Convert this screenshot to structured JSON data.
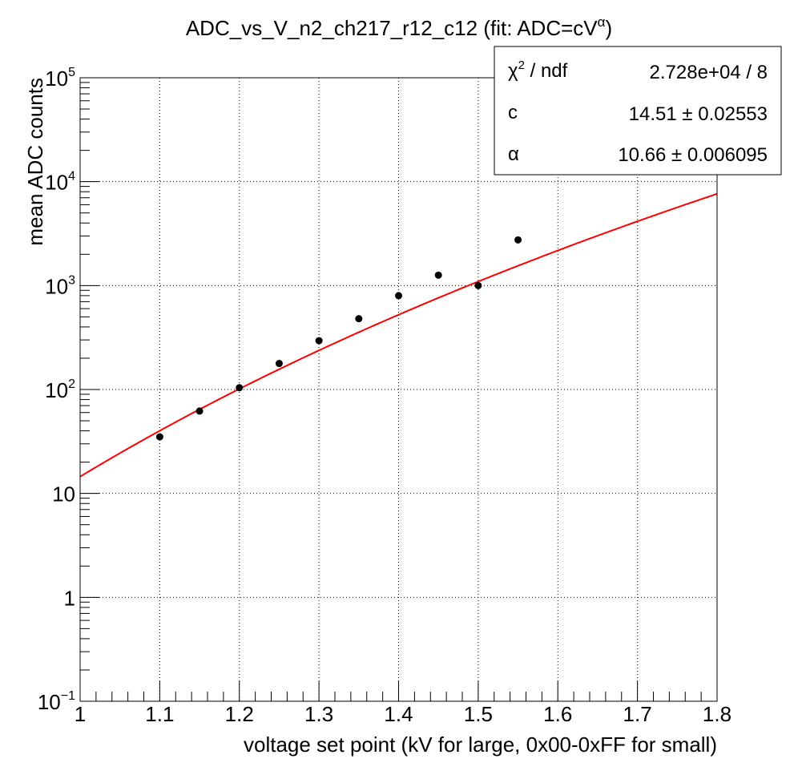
{
  "chart_data": {
    "type": "scatter",
    "title": "ADC_vs_V_n2_ch217_r12_c12 (fit: ADC=cV",
    "title_superscript": "α",
    "title_suffix": ")",
    "xlabel": "voltage set point (kV for large, 0x00-0xFF for small)",
    "ylabel": "mean ADC counts",
    "xlim": [
      1.0,
      1.8
    ],
    "ylim": [
      0.1,
      100000
    ],
    "y_scale": "log",
    "grid": true,
    "x_ticks": [
      {
        "value": 1.0,
        "label": "1"
      },
      {
        "value": 1.1,
        "label": "1.1"
      },
      {
        "value": 1.2,
        "label": "1.2"
      },
      {
        "value": 1.3,
        "label": "1.3"
      },
      {
        "value": 1.4,
        "label": "1.4"
      },
      {
        "value": 1.5,
        "label": "1.5"
      },
      {
        "value": 1.6,
        "label": "1.6"
      },
      {
        "value": 1.7,
        "label": "1.7"
      },
      {
        "value": 1.8,
        "label": "1.8"
      }
    ],
    "y_ticks": [
      {
        "value": 0.1,
        "base": "10",
        "exp": "−1"
      },
      {
        "value": 1,
        "base": "1",
        "exp": ""
      },
      {
        "value": 10,
        "base": "10",
        "exp": ""
      },
      {
        "value": 100,
        "base": "10",
        "exp": "2"
      },
      {
        "value": 1000,
        "base": "10",
        "exp": "3"
      },
      {
        "value": 10000,
        "base": "10",
        "exp": "4"
      },
      {
        "value": 100000,
        "base": "10",
        "exp": "5"
      }
    ],
    "series": [
      {
        "kind": "points",
        "color": "#000000",
        "x": [
          1.1,
          1.15,
          1.2,
          1.25,
          1.3,
          1.35,
          1.4,
          1.45,
          1.5,
          1.55
        ],
        "y": [
          35,
          62,
          104,
          178,
          295,
          480,
          800,
          1260,
          1000,
          2750
        ]
      },
      {
        "kind": "fit",
        "color": "#ff0000",
        "function": "c*x^alpha",
        "c": 14.51,
        "alpha": 10.66,
        "x_range": [
          1.0,
          1.8
        ]
      }
    ],
    "stats_box": {
      "placement": "top-right",
      "rows": [
        {
          "label": "χ",
          "label_sup": "2",
          "label_suffix": " / ndf",
          "value": "2.728e+04 / 8"
        },
        {
          "label": "c",
          "label_sup": "",
          "label_suffix": "",
          "value": "14.51 ± 0.02553"
        },
        {
          "label": "α",
          "label_sup": "",
          "label_suffix": "",
          "value": "10.66 ± 0.006095"
        }
      ]
    }
  }
}
